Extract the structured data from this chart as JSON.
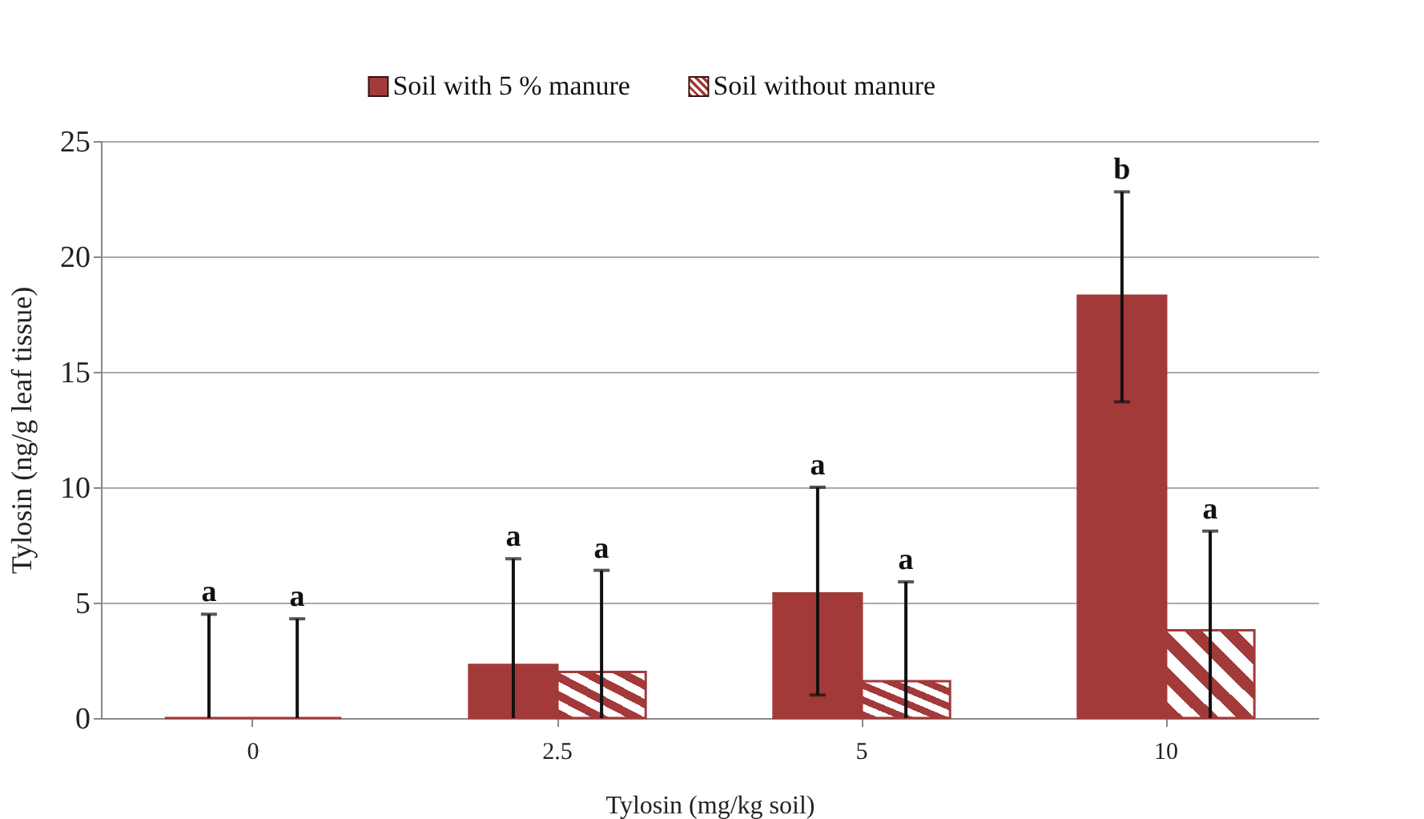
{
  "chart_data": {
    "type": "bar",
    "xlabel": "Tylosin (mg/kg soil)",
    "ylabel": "Tylosin (ng/g leaf tissue)",
    "categories": [
      "0",
      "2.5",
      "5",
      "10"
    ],
    "series": [
      {
        "name": "Soil with 5 % manure",
        "color": "#a33a3a",
        "values": [
          0,
          2.3,
          5.4,
          18.3
        ],
        "errors": [
          [
            0,
            4.5
          ],
          [
            0,
            6.9
          ],
          [
            1.0,
            10.0
          ],
          [
            13.7,
            22.8
          ]
        ]
      },
      {
        "name": "Soil without manure",
        "color": "#a33a3a",
        "values": [
          0,
          2.0,
          1.6,
          3.8
        ],
        "errors": [
          [
            0,
            4.3
          ],
          [
            0,
            6.4
          ],
          [
            0,
            5.9
          ],
          [
            0,
            8.1
          ]
        ]
      }
    ],
    "annotations": [
      "a",
      "a",
      "a",
      "a",
      "a",
      "a",
      "b",
      "a"
    ],
    "ylim": [
      0,
      25
    ],
    "yticks": [
      0,
      5,
      10,
      15,
      20,
      25
    ],
    "grid": "y",
    "legend": "top"
  }
}
